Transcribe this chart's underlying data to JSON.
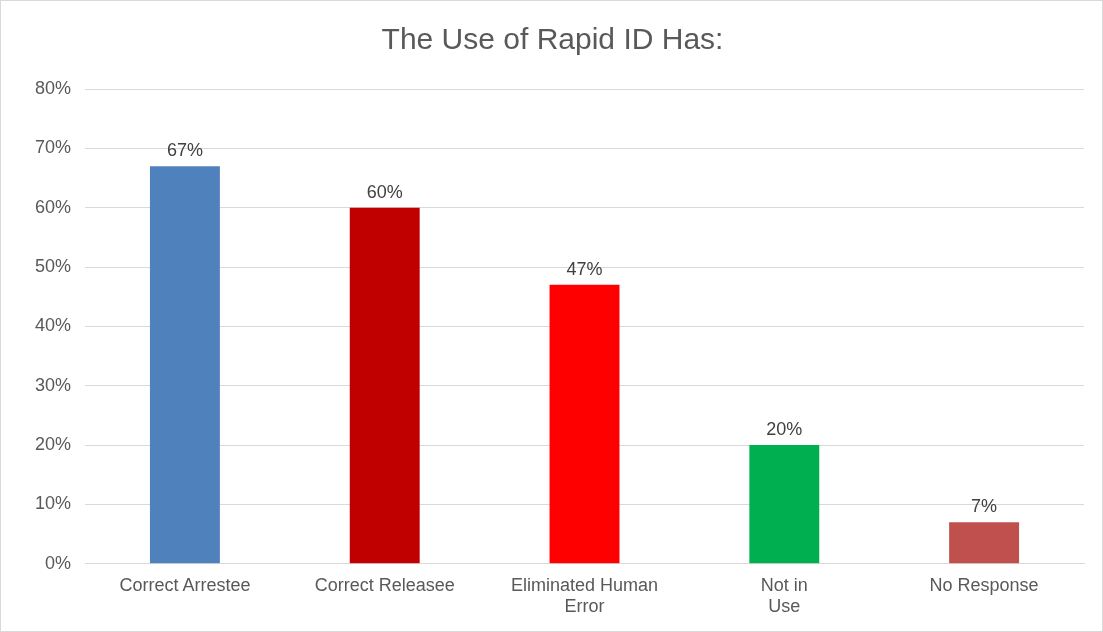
{
  "chart_data": {
    "type": "bar",
    "title": "The Use of Rapid ID Has:",
    "categories": [
      "Correct Arrestee",
      "Correct Releasee",
      "Eliminated Human Error",
      "Not in Use",
      "No Response"
    ],
    "values": [
      67,
      60,
      47,
      20,
      7
    ],
    "colors": [
      "#4f81bd",
      "#c00000",
      "#ff0000",
      "#00b050",
      "#c0504d"
    ],
    "value_labels": [
      "67%",
      "60%",
      "47%",
      "20%",
      "7%"
    ],
    "ylim": [
      0,
      80
    ],
    "yticks": [
      {
        "value": 0,
        "label": "0%"
      },
      {
        "value": 10,
        "label": "10%"
      },
      {
        "value": 20,
        "label": "20%"
      },
      {
        "value": 30,
        "label": "30%"
      },
      {
        "value": 40,
        "label": "40%"
      },
      {
        "value": 50,
        "label": "50%"
      },
      {
        "value": 60,
        "label": "60%"
      },
      {
        "value": 70,
        "label": "70%"
      },
      {
        "value": 80,
        "label": "80%"
      }
    ],
    "grid": "y",
    "legend": false
  }
}
